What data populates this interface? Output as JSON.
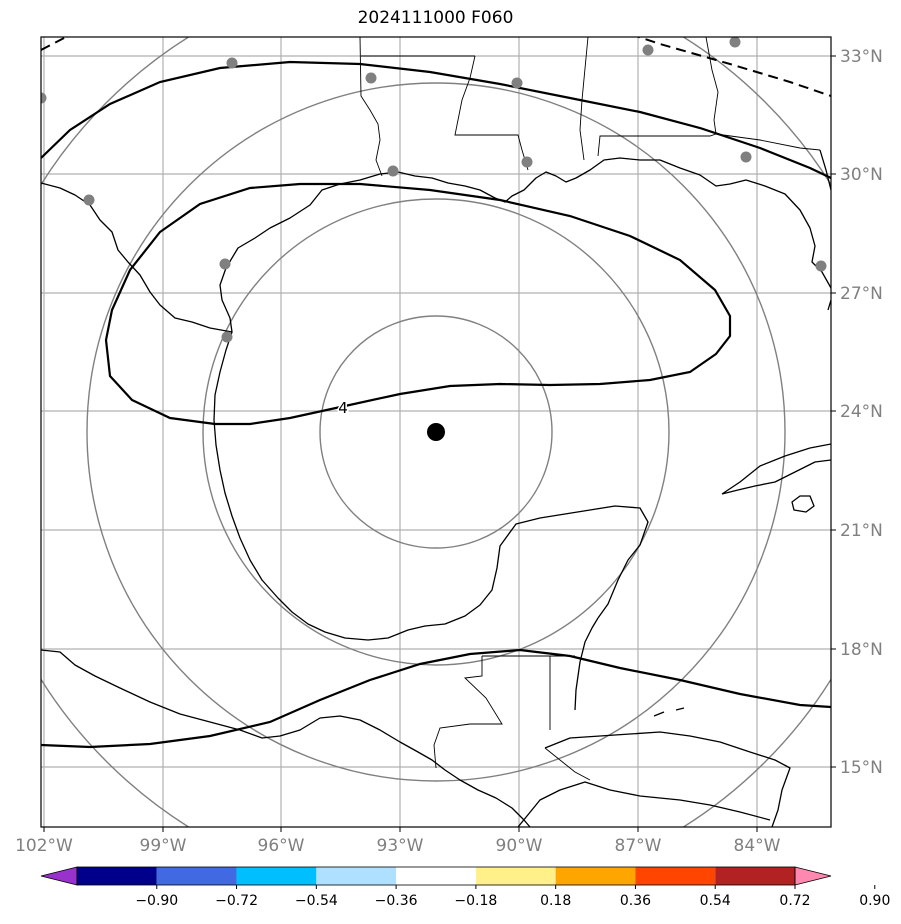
{
  "title": "2024111000 F060",
  "map": {
    "lon_labels": [
      "102°W",
      "99°W",
      "96°W",
      "93°W",
      "90°W",
      "87°W",
      "84°W"
    ],
    "lat_labels": [
      "33°N",
      "30°N",
      "27°N",
      "24°N",
      "21°N",
      "18°N",
      "15°N"
    ],
    "contour_label": "4",
    "colors": {
      "coast": "#000000",
      "grid": "#b0b0b0",
      "range_rings": "#808080",
      "stations": "#808080",
      "center_marker": "#000000"
    }
  },
  "colorbar": {
    "ticks": [
      "−0.90",
      "−0.72",
      "−0.54",
      "−0.36",
      "−0.18",
      "0.18",
      "0.36",
      "0.54",
      "0.72",
      "0.90"
    ],
    "colors": [
      "#9932cc",
      "#00008b",
      "#4169e1",
      "#00bfff",
      "#b0e0ff",
      "#ffffff",
      "#fff08a",
      "#ffa500",
      "#ff4500",
      "#b22222",
      "#ff88b0"
    ]
  }
}
